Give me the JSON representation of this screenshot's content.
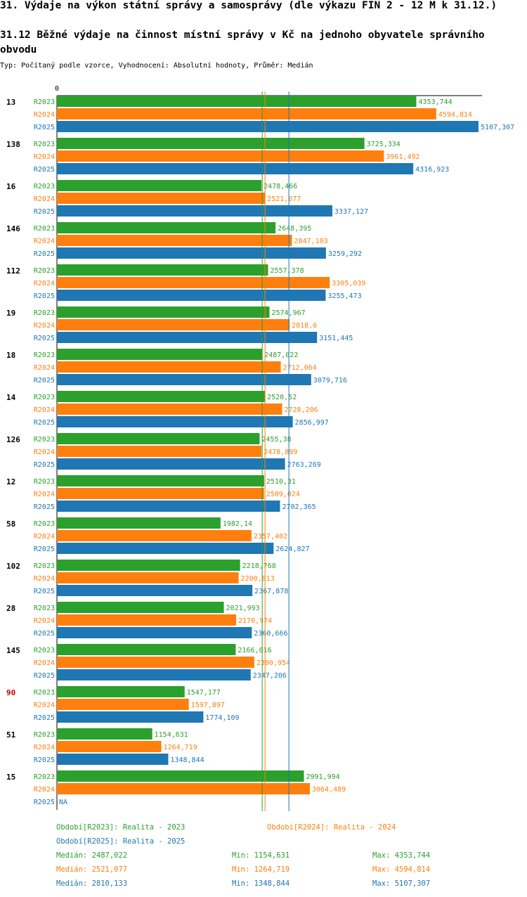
{
  "header": {
    "title": "31. Výdaje na výkon státní správy a samosprávy (dle výkazu FIN 2 - 12 M k 31.12.)",
    "subtitle": "31.12 Běžné výdaje na činnost místní správy v Kč na jednoho obyvatele správního obvodu",
    "type_line": "Typ: Počítaný podle vzorce, Vyhodnocení: Absolutní hodnoty, Průměr: Medián"
  },
  "colors": {
    "R2023": "#2ca02c",
    "R2024": "#ff7f0e",
    "R2025": "#1f77b4",
    "highlight": "#cc0000"
  },
  "chart_data": {
    "type": "bar",
    "orientation": "horizontal",
    "title": "31.12 Běžné výdaje na činnost místní správy v Kč na jednoho obyvatele správního obvodu",
    "axis_zero_label": "0",
    "xlim": [
      0,
      5107.307
    ],
    "categories": [
      "13",
      "138",
      "16",
      "146",
      "112",
      "19",
      "18",
      "14",
      "126",
      "12",
      "58",
      "102",
      "28",
      "145",
      "90",
      "51",
      "15"
    ],
    "highlight_category": "90",
    "series": [
      {
        "name": "R2023",
        "values": [
          4353.744,
          3725.334,
          2478.466,
          2648.395,
          2557.378,
          2574.967,
          2487.022,
          2520.52,
          2455.38,
          2510.31,
          1982.14,
          2218.768,
          2021.993,
          2166.016,
          1547.177,
          1154.631,
          2991.994
        ]
      },
      {
        "name": "R2024",
        "values": [
          4594.814,
          3961.492,
          2521.077,
          2847.103,
          3305.039,
          2818.6,
          2712.064,
          2728.206,
          2478.899,
          2509.024,
          2357.402,
          2200.813,
          2170.974,
          2390.954,
          1597.897,
          1264.719,
          3064.489
        ]
      },
      {
        "name": "R2025",
        "values": [
          5107.307,
          4316.923,
          3337.127,
          3259.292,
          3255.473,
          3151.445,
          3079.716,
          2856.997,
          2763.269,
          2702.365,
          2624.827,
          2367.878,
          2360.666,
          2347.206,
          1774.109,
          1348.844,
          null
        ]
      }
    ],
    "value_labels": {
      "R2023": [
        "4353,744",
        "3725,334",
        "2478,466",
        "2648,395",
        "2557,378",
        "2574,967",
        "2487,022",
        "2520,52",
        "2455,38",
        "2510,31",
        "1982,14",
        "2218,768",
        "2021,993",
        "2166,016",
        "1547,177",
        "1154,631",
        "2991,994"
      ],
      "R2024": [
        "4594,814",
        "3961,492",
        "2521,077",
        "2847,103",
        "3305,039",
        "2818,6",
        "2712,064",
        "2728,206",
        "2478,899",
        "2509,024",
        "2357,402",
        "2200,813",
        "2170,974",
        "2390,954",
        "1597,897",
        "1264,719",
        "3064,489"
      ],
      "R2025": [
        "5107,307",
        "4316,923",
        "3337,127",
        "3259,292",
        "3255,473",
        "3151,445",
        "3079,716",
        "2856,997",
        "2763,269",
        "2702,365",
        "2624,827",
        "2367,878",
        "2360,666",
        "2347,206",
        "1774,109",
        "1348,844",
        "NA"
      ]
    },
    "medians": {
      "R2023": 2487.022,
      "R2024": 2521.077,
      "R2025": 2810.133
    }
  },
  "legend": {
    "periods": [
      {
        "series": "R2023",
        "text": "Období[R2023]: Realita - 2023"
      },
      {
        "series": "R2024",
        "text": "Období[R2024]: Realita - 2024"
      },
      {
        "series": "R2025",
        "text": "Období[R2025]: Realita - 2025"
      }
    ],
    "stats": [
      {
        "series": "R2023",
        "median": "Medián: 2487,022",
        "min": "Min: 1154,631",
        "max": "Max: 4353,744"
      },
      {
        "series": "R2024",
        "median": "Medián: 2521,077",
        "min": "Min: 1264,719",
        "max": "Max: 4594,814"
      },
      {
        "series": "R2025",
        "median": "Medián: 2810,133",
        "min": "Min: 1348,844",
        "max": "Max: 5107,307"
      }
    ]
  }
}
